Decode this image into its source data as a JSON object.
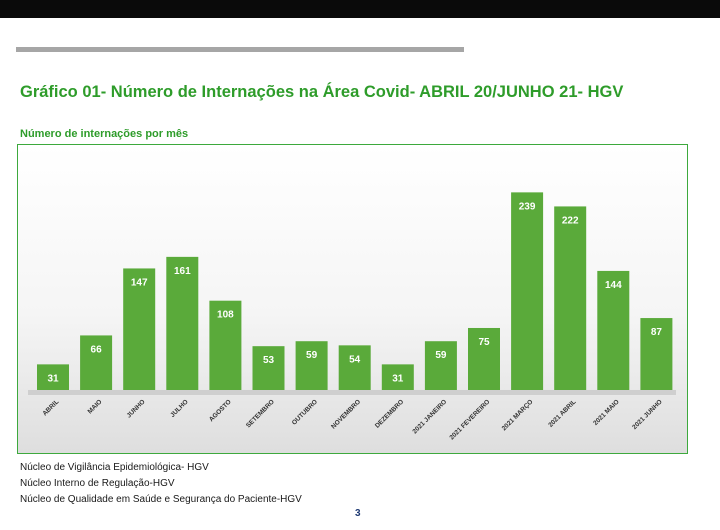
{
  "header": {
    "title": "Gráfico 01- Número de Internações na Área Covid- ABRIL 20/JUNHO 21- HGV",
    "subtitle": "Número de internações por mês"
  },
  "chart_data": {
    "type": "bar",
    "categories": [
      "ABRIL",
      "MAIO",
      "JUNHO",
      "JULHO",
      "AGOSTO",
      "SETEMBRO",
      "OUTUBRO",
      "NOVEMBRO",
      "DEZEMBRO",
      "2021 JANEIRO",
      "2021 FEVEREIRO",
      "2021 MARÇO",
      "2021 ABRIL",
      "2021 MAIO",
      "2021 JUNHO"
    ],
    "values": [
      31,
      66,
      147,
      161,
      108,
      53,
      59,
      54,
      31,
      59,
      75,
      239,
      222,
      144,
      87
    ],
    "ylim": [
      0,
      260
    ],
    "grid": false,
    "bar_color": "#5aaa3a",
    "label_color": "#ffffff"
  },
  "footer": {
    "line1": "Núcleo de Vigilância Epidemiológica- HGV",
    "line2": "Núcleo Interno de Regulação-HGV",
    "line3": "Núcleo de Qualidade em Saúde e Segurança do Paciente-HGV",
    "page": "3"
  }
}
